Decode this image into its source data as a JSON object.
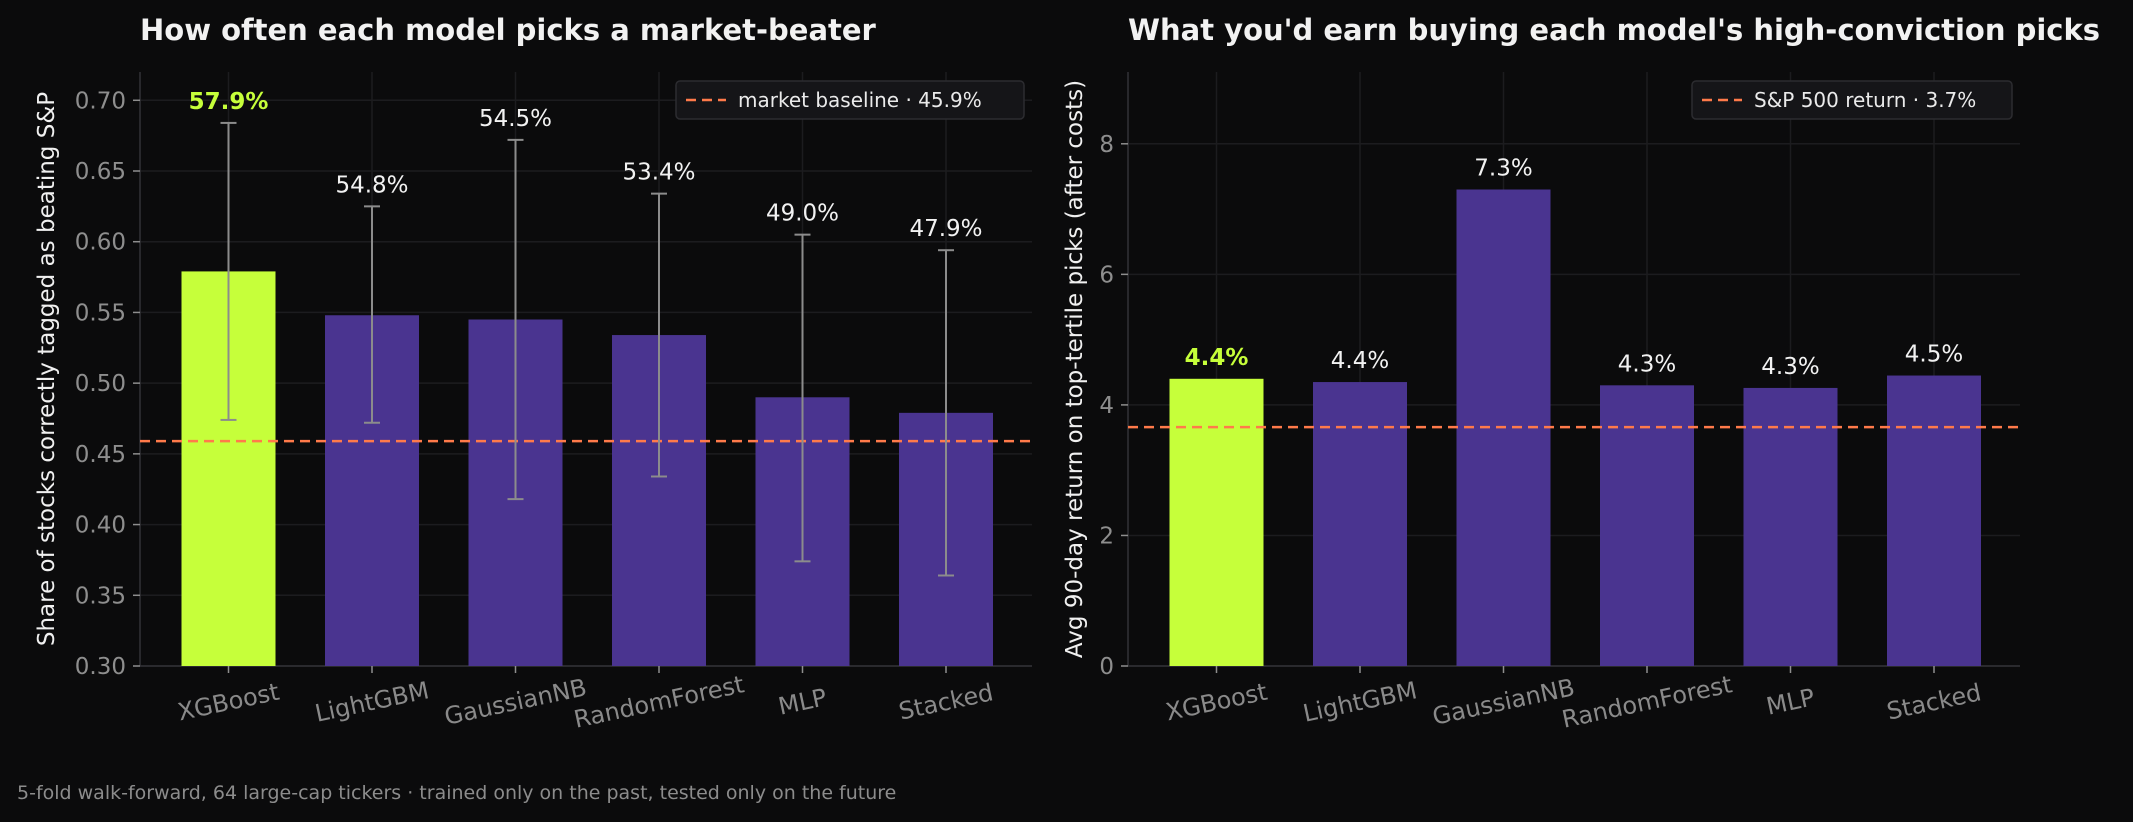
{
  "footnote": "5-fold walk-forward, 64 large-cap tickers  ·  trained only on the past, tested only on the future",
  "colors": {
    "background": "#0b0b0c",
    "highlight": "#c6ff3a",
    "bar": "#4a3490",
    "baseline": "#ff7a4a",
    "errorbar": "#8c8c8c",
    "grid": "#1c1c1f"
  },
  "chart_data": [
    {
      "type": "bar",
      "title": "How often each model picks a market-beater",
      "ylabel": "Share of stocks correctly tagged as beating S&P",
      "xlabel": "",
      "categories": [
        "XGBoost",
        "LightGBM",
        "GaussianNB",
        "RandomForest",
        "MLP",
        "Stacked"
      ],
      "values": [
        0.579,
        0.548,
        0.545,
        0.534,
        0.49,
        0.479
      ],
      "value_labels": [
        "57.9%",
        "54.8%",
        "54.5%",
        "53.4%",
        "49.0%",
        "47.9%"
      ],
      "error_low": [
        0.474,
        0.472,
        0.418,
        0.434,
        0.374,
        0.364
      ],
      "error_high": [
        0.684,
        0.625,
        0.672,
        0.634,
        0.605,
        0.594
      ],
      "highlight_index": 0,
      "ylim": [
        0.3,
        0.72
      ],
      "yticks": [
        0.3,
        0.35,
        0.4,
        0.45,
        0.5,
        0.55,
        0.6,
        0.65,
        0.7
      ],
      "ytick_labels": [
        "0.30",
        "0.35",
        "0.40",
        "0.45",
        "0.50",
        "0.55",
        "0.60",
        "0.65",
        "0.70"
      ],
      "baseline": {
        "value": 0.459,
        "label": "market baseline  ·  45.9%"
      },
      "legend_position": "top-right",
      "grid": true
    },
    {
      "type": "bar",
      "title": "What you'd earn buying each model's high-conviction picks",
      "ylabel": "Avg 90-day return on top-tertile picks (after costs)",
      "xlabel": "",
      "categories": [
        "XGBoost",
        "LightGBM",
        "GaussianNB",
        "RandomForest",
        "MLP",
        "Stacked"
      ],
      "values": [
        4.4,
        4.35,
        7.3,
        4.3,
        4.26,
        4.45
      ],
      "value_labels": [
        "4.4%",
        "4.4%",
        "7.3%",
        "4.3%",
        "4.3%",
        "4.5%"
      ],
      "highlight_index": 0,
      "ylim": [
        0,
        9.1
      ],
      "yticks": [
        0,
        2,
        4,
        6,
        8
      ],
      "ytick_labels": [
        "0",
        "2",
        "4",
        "6",
        "8"
      ],
      "baseline": {
        "value": 3.66,
        "label": "S&P 500 return  ·  3.7%"
      },
      "legend_position": "top-right",
      "grid": true
    }
  ]
}
